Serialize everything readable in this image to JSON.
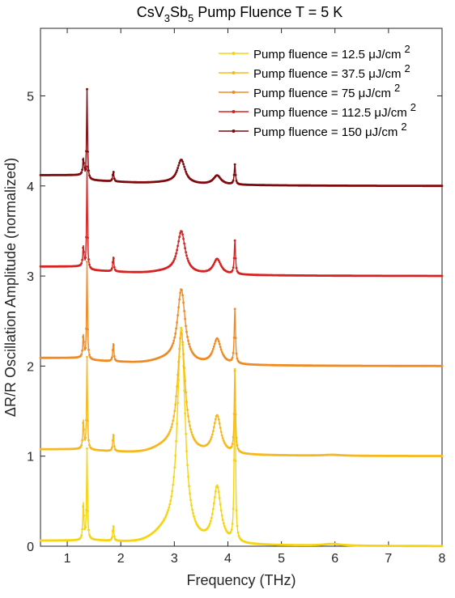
{
  "chart_data": {
    "type": "line",
    "title_parts": [
      "CsV",
      "3",
      "Sb",
      "5",
      " Pump Fluence T = 5 K"
    ],
    "xlabel": "Frequency (THz)",
    "ylabel": "ΔR/R Oscillation Amplitude (normalized)",
    "xlim": [
      0.5,
      8
    ],
    "ylim": [
      0,
      5.75
    ],
    "xticks": [
      1,
      2,
      3,
      4,
      5,
      6,
      7,
      8
    ],
    "yticks": [
      0,
      1,
      2,
      3,
      4,
      5
    ],
    "legend_position": "top-right",
    "series": [
      {
        "name": "Pump fluence = 12.5 μJ/cm 2",
        "legend_prefix": "Pump fluence = 12.5 ",
        "color": "#F6D410",
        "offset": 0,
        "peak_heights": {
          "p1": 0.42,
          "p2": 1.0,
          "p3": 0.18,
          "p4": 2.32,
          "p5": 0.62,
          "p6": 1.9,
          "p7": 0.02
        }
      },
      {
        "name": "Pump fluence = 37.5 μJ/cm 2",
        "legend_prefix": "Pump fluence = 37.5 ",
        "color": "#F6B81E",
        "offset": 1,
        "peak_heights": {
          "p1": 0.32,
          "p2": 1.02,
          "p3": 0.2,
          "p4": 1.3,
          "p5": 0.42,
          "p6": 0.9,
          "p7": 0.01
        }
      },
      {
        "name": "Pump fluence = 75 μJ/cm 2",
        "legend_prefix": "Pump fluence = 75 ",
        "color": "#F08A24",
        "offset": 2,
        "peak_heights": {
          "p1": 0.25,
          "p2": 1.08,
          "p3": 0.21,
          "p4": 0.8,
          "p5": 0.28,
          "p6": 0.6,
          "p7": 0.0
        }
      },
      {
        "name": "Pump fluence = 112.5 μJ/cm 2",
        "legend_prefix": "Pump fluence = 112.5 ",
        "color": "#D72222",
        "offset": 3,
        "peak_heights": {
          "p1": 0.22,
          "p2": 1.14,
          "p3": 0.17,
          "p4": 0.46,
          "p5": 0.17,
          "p6": 0.37,
          "p7": 0.0
        }
      },
      {
        "name": "Pump fluence = 150 μJ/cm 2",
        "legend_prefix": "Pump fluence = 150 ",
        "color": "#7F0A0E",
        "offset": 4,
        "peak_heights": {
          "p1": 0.18,
          "p2": 1.0,
          "p3": 0.12,
          "p4": 0.26,
          "p5": 0.1,
          "p6": 0.22,
          "p7": 0.0
        }
      }
    ],
    "legend_unit": "μJ/cm",
    "legend_sup": "2"
  }
}
